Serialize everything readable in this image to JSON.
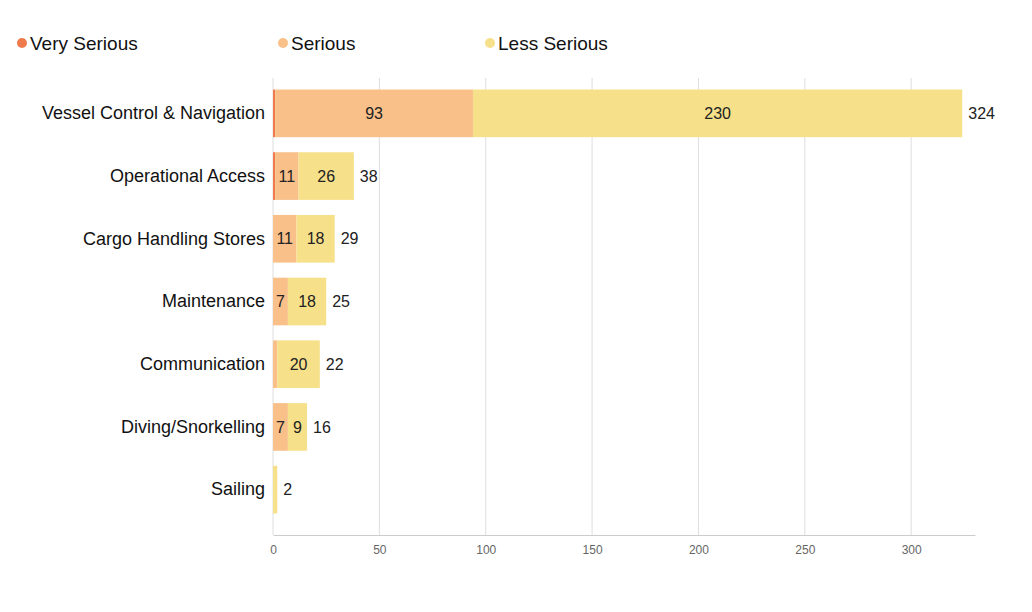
{
  "chart_data": {
    "type": "bar",
    "orientation": "horizontal",
    "stacked": true,
    "data_labels": true,
    "legend": "top-left",
    "grid": true,
    "categories": [
      "Vessel Control & Navigation",
      "Operational Access",
      "Cargo Handling Stores",
      "Maintenance",
      "Communication",
      "Diving/Snorkelling",
      "Sailing"
    ],
    "series": [
      {
        "name": "Very Serious",
        "color": "#ef7b4c",
        "values": [
          1,
          1,
          0,
          0,
          0,
          0,
          0
        ],
        "value_labels": [
          null,
          null,
          null,
          null,
          null,
          null,
          null
        ]
      },
      {
        "name": "Serious",
        "color": "#f9c08a",
        "values": [
          93,
          11,
          11,
          7,
          2,
          7,
          0
        ],
        "value_labels": [
          "93",
          "11",
          "11",
          "7",
          null,
          "7",
          null
        ]
      },
      {
        "name": "Less Serious",
        "color": "#f6e08a",
        "values": [
          230,
          26,
          18,
          18,
          20,
          9,
          2
        ],
        "value_labels": [
          "230",
          "26",
          "18",
          "18",
          "20",
          "9",
          null
        ]
      }
    ],
    "totals": [
      324,
      38,
      29,
      25,
      22,
      16,
      2
    ],
    "xlim": [
      0,
      330
    ],
    "xticks": [
      0,
      50,
      100,
      150,
      200,
      250,
      300
    ]
  }
}
